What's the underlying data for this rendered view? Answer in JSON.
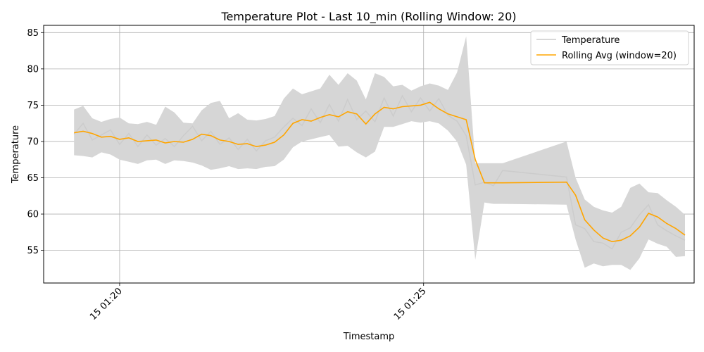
{
  "chart_data": {
    "type": "line",
    "title": "Temperature Plot - Last 10_min (Rolling Window: 20)",
    "xlabel": "Timestamp",
    "ylabel": "Temperature",
    "xlim_minutes": [
      -1.25,
      9.45
    ],
    "ylim": [
      50.5,
      86
    ],
    "yticks": [
      55,
      60,
      65,
      70,
      75,
      80,
      85
    ],
    "xticks": [
      {
        "minute": 0,
        "label": "15 01:20"
      },
      {
        "minute": 5,
        "label": "15 01:25"
      }
    ],
    "grid": true,
    "legend_position": "upper-right",
    "colors": {
      "raw": "#cccccc",
      "band": "#d6d6d6",
      "rolling": "#ffa500"
    },
    "legend": [
      {
        "label": "Temperature",
        "color": "#cccccc"
      },
      {
        "label": "Rolling Avg (window=20)",
        "color": "#ffa500"
      }
    ],
    "series": [
      {
        "name": "Rolling Avg (window=20)",
        "x_minutes": [
          -0.75,
          -0.6,
          -0.45,
          -0.3,
          -0.15,
          0,
          0.15,
          0.3,
          0.45,
          0.6,
          0.75,
          0.9,
          1.05,
          1.2,
          1.35,
          1.5,
          1.65,
          1.8,
          1.95,
          2.1,
          2.25,
          2.4,
          2.55,
          2.7,
          2.85,
          3.0,
          3.15,
          3.3,
          3.45,
          3.6,
          3.75,
          3.9,
          4.05,
          4.2,
          4.35,
          4.5,
          4.65,
          4.8,
          4.95,
          5.1,
          5.25,
          5.4,
          5.55,
          5.7,
          5.85,
          6.0,
          6.15,
          6.3,
          7.35,
          7.5,
          7.65,
          7.8,
          7.95,
          8.1,
          8.25,
          8.4,
          8.55,
          8.7,
          8.85,
          9.0,
          9.15,
          9.3
        ],
        "values": [
          71.2,
          71.4,
          71.1,
          70.6,
          70.7,
          70.3,
          70.5,
          70.0,
          70.1,
          70.2,
          69.8,
          70.0,
          69.9,
          70.3,
          71.0,
          70.8,
          70.2,
          70.0,
          69.6,
          69.7,
          69.3,
          69.5,
          69.9,
          70.9,
          72.5,
          73.0,
          72.8,
          73.3,
          73.7,
          73.4,
          74.1,
          73.8,
          72.4,
          73.8,
          74.7,
          74.5,
          74.8,
          74.9,
          75.0,
          75.4,
          74.5,
          73.8,
          73.4,
          73.0,
          67.5,
          64.3,
          64.3,
          64.3,
          64.4,
          62.6,
          59.2,
          57.8,
          56.7,
          56.2,
          56.4,
          57.0,
          58.2,
          60.1,
          59.6,
          58.7,
          58.0,
          57.1
        ]
      },
      {
        "name": "Temperature",
        "x_minutes": [
          -0.75,
          -0.6,
          -0.45,
          -0.3,
          -0.15,
          0,
          0.15,
          0.3,
          0.45,
          0.6,
          0.75,
          0.9,
          1.05,
          1.2,
          1.35,
          1.5,
          1.65,
          1.8,
          1.95,
          2.1,
          2.25,
          2.4,
          2.55,
          2.7,
          2.85,
          3.0,
          3.15,
          3.3,
          3.45,
          3.6,
          3.75,
          3.9,
          4.05,
          4.2,
          4.35,
          4.5,
          4.65,
          4.8,
          4.95,
          5.1,
          5.25,
          5.4,
          5.55,
          5.7,
          5.85,
          6.0,
          6.15,
          6.3,
          7.35,
          7.5,
          7.65,
          7.8,
          7.95,
          8.1,
          8.25,
          8.4,
          8.55,
          8.7,
          8.85,
          9.0,
          9.15,
          9.3
        ],
        "values": [
          71.0,
          72.5,
          70.2,
          70.9,
          71.6,
          69.6,
          71.1,
          69.3,
          70.9,
          69.5,
          70.4,
          69.3,
          70.8,
          72.1,
          70.1,
          71.4,
          69.6,
          70.5,
          68.9,
          70.3,
          68.7,
          70.1,
          70.6,
          72.0,
          73.2,
          72.2,
          74.5,
          72.6,
          75.1,
          72.8,
          75.8,
          73.0,
          74.2,
          72.7,
          76.0,
          73.5,
          76.3,
          74.1,
          76.0,
          74.2,
          75.9,
          73.6,
          72.8,
          70.8,
          64.0,
          64.4,
          63.9,
          66.0,
          65.1,
          58.5,
          58.0,
          56.2,
          56.0,
          55.2,
          57.5,
          58.1,
          59.9,
          61.3,
          58.5,
          57.7,
          57.0,
          56.4
        ]
      }
    ],
    "band": {
      "upper": [
        74.4,
        74.9,
        73.2,
        72.7,
        73.1,
        73.3,
        72.5,
        72.4,
        72.7,
        72.3,
        74.8,
        74.0,
        72.6,
        72.5,
        74.3,
        75.3,
        75.6,
        73.2,
        73.9,
        73.0,
        72.9,
        73.1,
        73.5,
        75.9,
        77.3,
        76.5,
        76.9,
        77.3,
        79.2,
        77.8,
        79.4,
        78.4,
        75.8,
        79.4,
        78.9,
        77.6,
        77.8,
        77.0,
        77.6,
        78.0,
        77.7,
        77.1,
        79.5,
        84.5,
        67.0,
        67.0,
        67.0,
        67.0,
        70.0,
        65.0,
        62.0,
        61.0,
        60.5,
        60.2,
        61.0,
        63.6,
        64.2,
        63.0,
        62.9,
        61.9,
        61.0,
        59.9
      ],
      "lower": [
        68.1,
        68.0,
        67.8,
        68.5,
        68.2,
        67.5,
        67.2,
        66.9,
        67.4,
        67.5,
        66.9,
        67.4,
        67.3,
        67.1,
        66.7,
        66.1,
        66.3,
        66.6,
        66.2,
        66.3,
        66.2,
        66.5,
        66.6,
        67.5,
        69.2,
        70.0,
        70.3,
        70.6,
        70.9,
        69.3,
        69.4,
        68.5,
        67.8,
        68.6,
        72.0,
        72.0,
        72.4,
        72.8,
        72.6,
        72.8,
        72.5,
        71.5,
        70.0,
        66.8,
        53.7,
        61.6,
        61.4,
        61.4,
        61.3,
        56.5,
        52.6,
        53.2,
        52.8,
        53.0,
        53.0,
        52.3,
        53.9,
        56.5,
        55.9,
        55.5,
        54.1,
        54.2
      ]
    }
  }
}
